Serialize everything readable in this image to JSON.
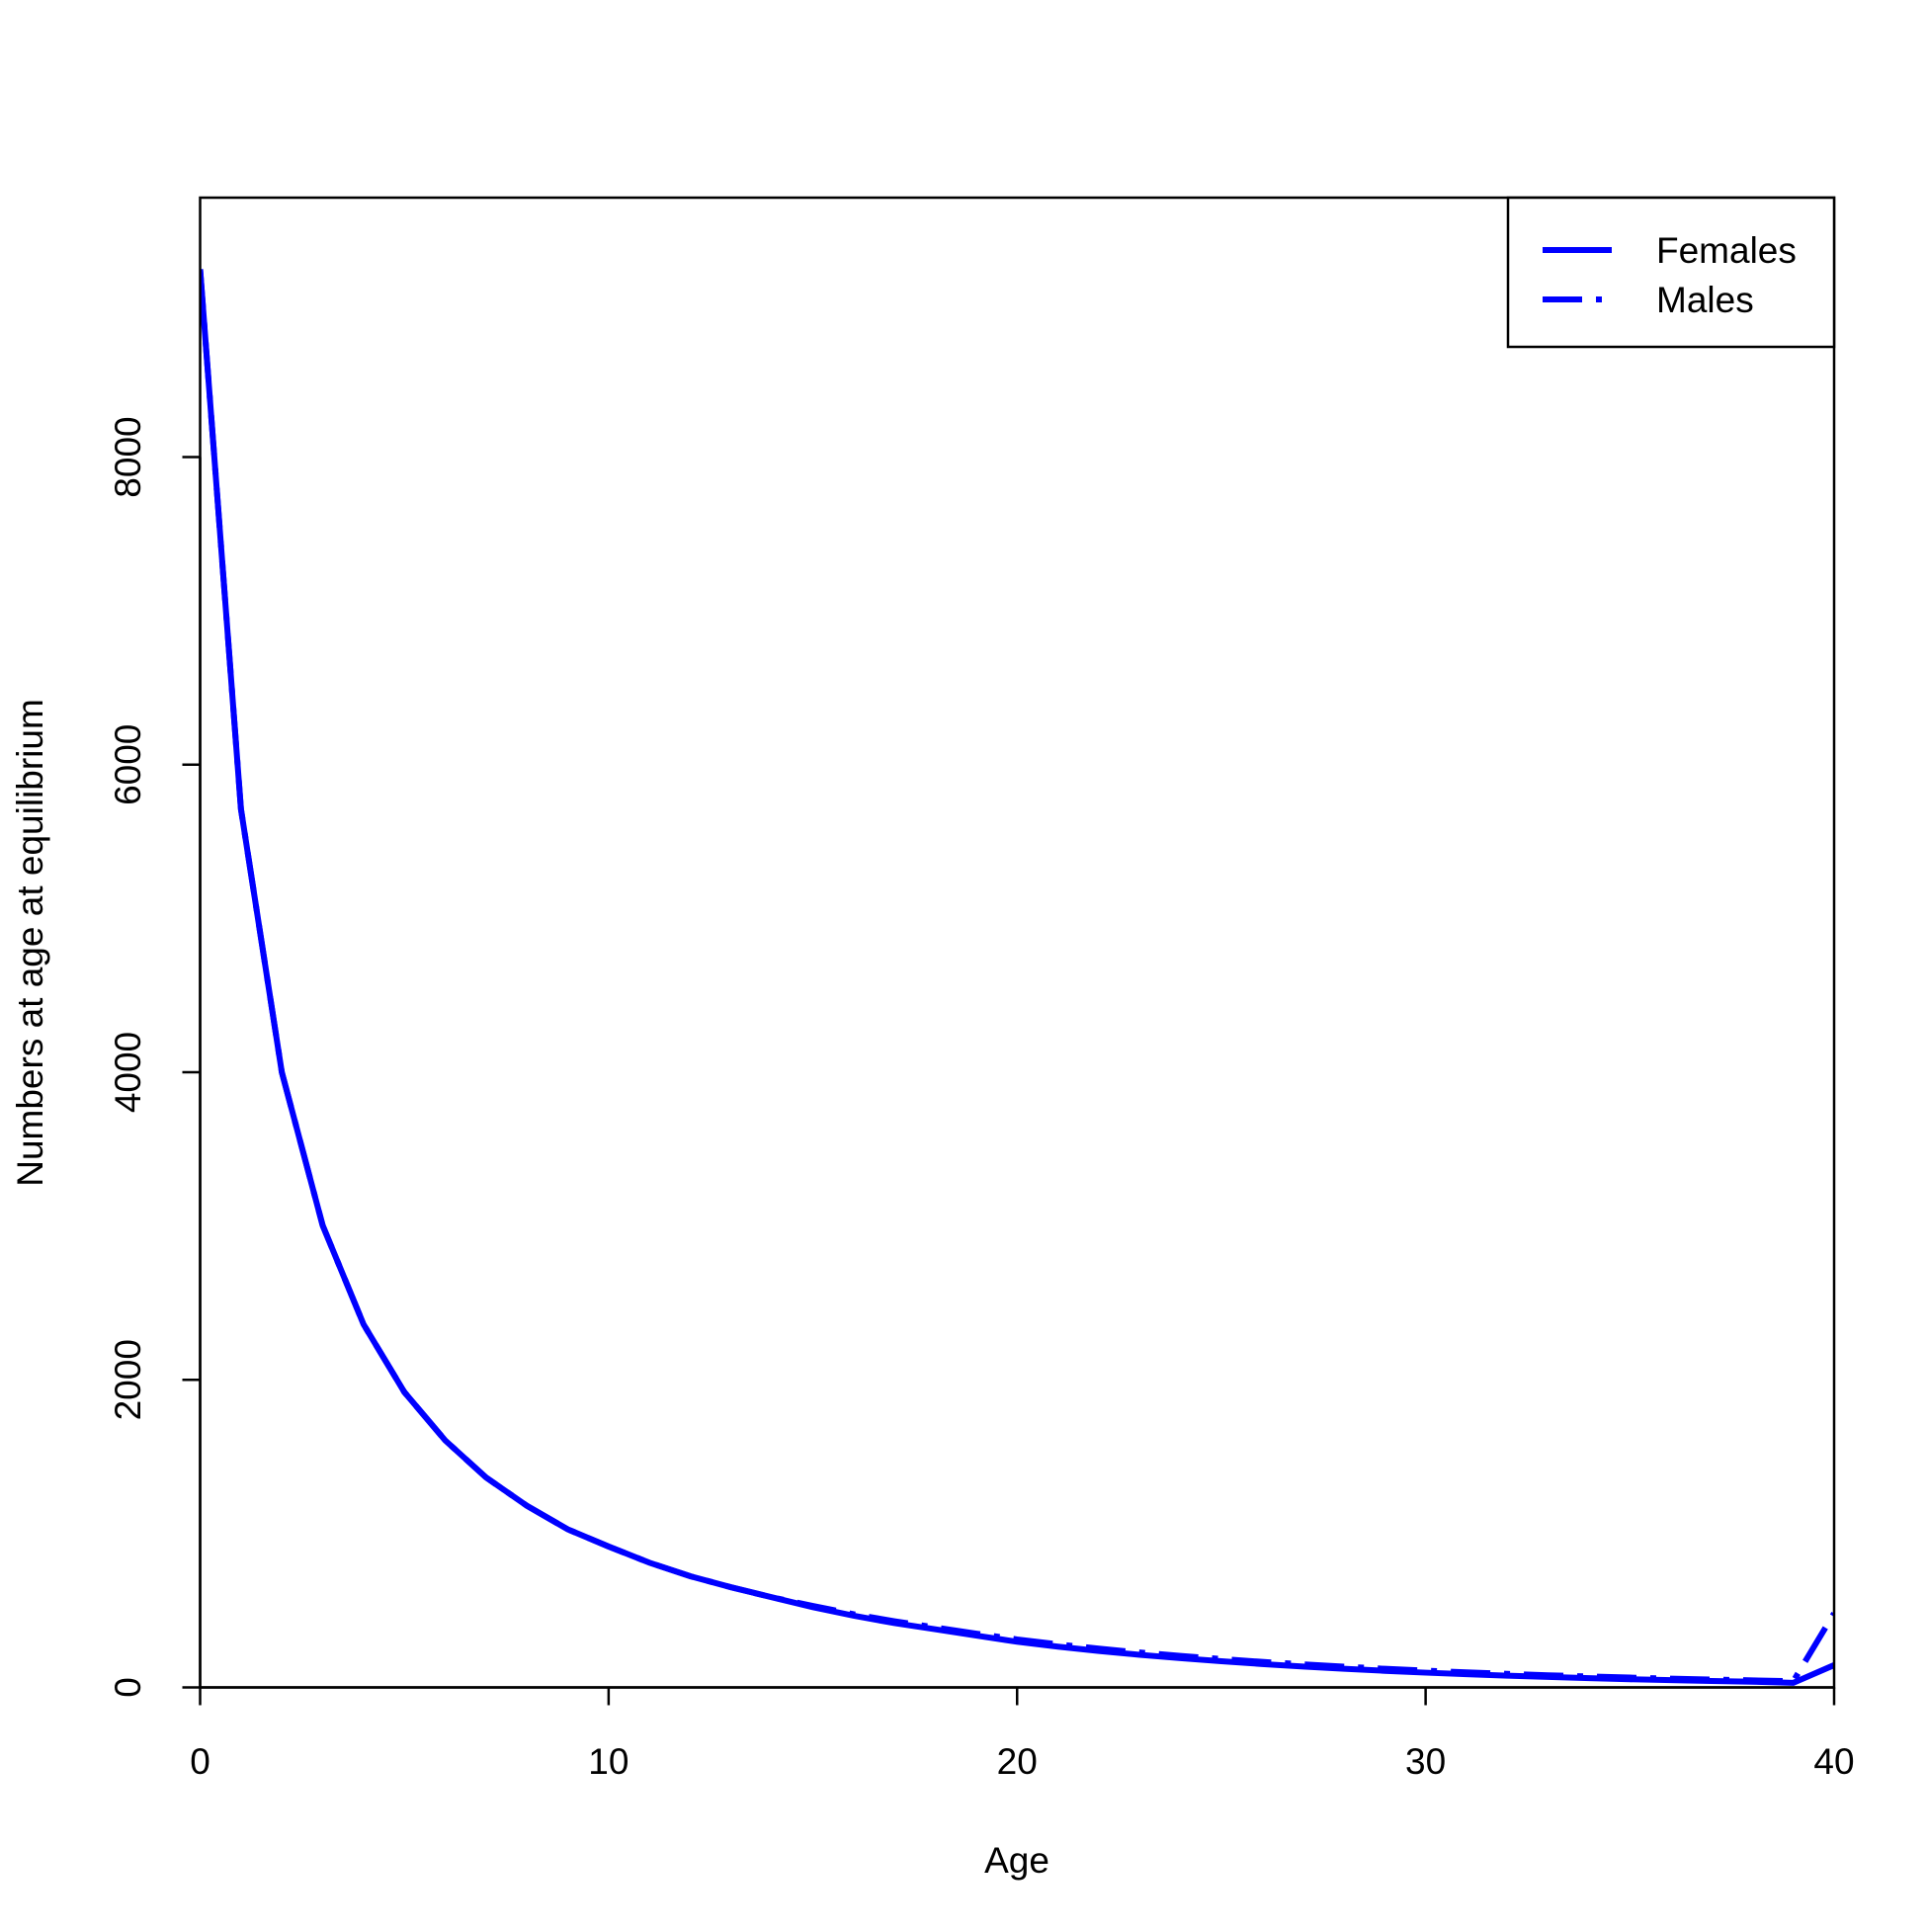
{
  "chart_data": {
    "type": "line",
    "xlabel": "Age",
    "ylabel": "Numbers at age at equilibrium",
    "x": [
      0,
      1,
      2,
      3,
      4,
      5,
      6,
      7,
      8,
      9,
      10,
      11,
      12,
      13,
      14,
      15,
      16,
      17,
      18,
      19,
      20,
      21,
      22,
      23,
      24,
      25,
      26,
      27,
      28,
      29,
      30,
      31,
      32,
      33,
      34,
      35,
      36,
      37,
      38,
      39,
      40
    ],
    "series": [
      {
        "name": "Females",
        "color": "#0000ff",
        "dash": "solid",
        "values": [
          9221,
          5711,
          4000,
          3004,
          2361,
          1920,
          1606,
          1365,
          1181,
          1028,
          916,
          811,
          723,
          651,
          586,
          522,
          466,
          418,
          378,
          337,
          297,
          265,
          237,
          212,
          190,
          170,
          152,
          136,
          121,
          108,
          96,
          86,
          76,
          68,
          60,
          53,
          47,
          42,
          37,
          30,
          145
        ]
      },
      {
        "name": "Males",
        "color": "#0000ff",
        "dash": "dotdash",
        "values": [
          9221,
          5711,
          4000,
          3004,
          2361,
          1920,
          1606,
          1365,
          1181,
          1028,
          916,
          811,
          723,
          651,
          586,
          530,
          476,
          430,
          390,
          350,
          312,
          280,
          252,
          227,
          205,
          185,
          166,
          150,
          135,
          121,
          109,
          98,
          88,
          79,
          71,
          64,
          57,
          51,
          46,
          40,
          482
        ]
      }
    ],
    "xlim": [
      0,
      40
    ],
    "xticks": [
      0,
      10,
      20,
      30,
      40
    ],
    "ylim": [
      0,
      9687
    ],
    "yticks": [
      0,
      2000,
      4000,
      6000,
      8000
    ],
    "legend": "top-right"
  }
}
